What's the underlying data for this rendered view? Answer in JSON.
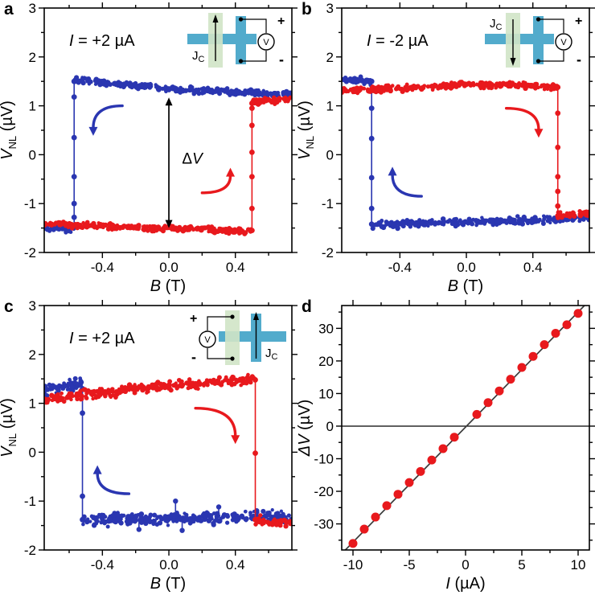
{
  "figure": {
    "colors": {
      "blue": "#2a36b1",
      "red": "#e8191d",
      "black": "#000000",
      "teal": "#52abcc",
      "pale_green": "#d0e4c6",
      "fit_line": "#3a3a3a",
      "background": "#ffffff"
    }
  },
  "chart_data": [
    {
      "id": "a",
      "label": "a",
      "type": "scatter",
      "kind": "hysteresis",
      "current_label": {
        "pre": "I",
        "rest": " = +2 µA"
      },
      "xlabel": {
        "main": "B",
        "rest": " (T)"
      },
      "ylabel": {
        "main": "V",
        "sub": "NL",
        "rest": " (µV)"
      },
      "xlim": [
        -0.75,
        0.74
      ],
      "ylim": [
        -2,
        3
      ],
      "xticks": [
        -0.4,
        0.0,
        0.4
      ],
      "xtick_labels": [
        "-0.4",
        "0.0",
        "0.4"
      ],
      "xminor": [
        -0.6,
        -0.2,
        0.2,
        0.6
      ],
      "yticks": [
        -2,
        -1,
        0,
        1,
        2,
        3
      ],
      "ytick_labels": [
        "-2",
        "-1",
        "0",
        "1",
        "2",
        "3"
      ],
      "yminor": [
        -1.5,
        -0.5,
        0.5,
        1.5,
        2.5
      ],
      "series": [
        {
          "name": "down-sweep",
          "color": "blue",
          "segments": [
            {
              "x": [
                -0.57,
                0.1
              ],
              "y": [
                1.53,
                1.33
              ],
              "noise": 0.09
            },
            {
              "x": [
                0.1,
                0.74
              ],
              "y": [
                1.33,
                1.22
              ],
              "noise": 0.09
            },
            {
              "x": [
                -0.75,
                -0.57
              ],
              "y": [
                -1.5,
                -1.52
              ],
              "noise": 0.1
            }
          ],
          "jump": {
            "x": -0.57,
            "top": 1.5,
            "bottom": -1.45,
            "dots": [
              1.18,
              0.35,
              -0.45,
              -1.0,
              -1.28
            ]
          }
        },
        {
          "name": "up-sweep",
          "color": "red",
          "segments": [
            {
              "x": [
                -0.75,
                0.5
              ],
              "y": [
                -1.42,
                -1.57
              ],
              "noise": 0.09
            },
            {
              "x": [
                0.5,
                0.74
              ],
              "y": [
                1.07,
                1.15
              ],
              "noise": 0.1
            }
          ],
          "jump": {
            "x": 0.5,
            "top": 1.05,
            "bottom": -1.55,
            "dots": [
              0.95,
              0.6,
              0.05,
              -0.45,
              -1.1
            ]
          }
        }
      ],
      "annotations": [
        {
          "type": "curve-arrow",
          "color": "blue",
          "x0": -0.28,
          "y0": 1.0,
          "x1": -0.455,
          "y1": 0.42,
          "dir": "down"
        },
        {
          "type": "curve-arrow",
          "color": "red",
          "x0": 0.2,
          "y0": -0.78,
          "x1": 0.37,
          "y1": -0.3,
          "dir": "up"
        },
        {
          "type": "dv-arrow",
          "x": 0.0,
          "y_top": 1.17,
          "y_bottom": -1.5,
          "label": {
            "pre": "Δ",
            "main": "V"
          },
          "label_x": 0.05,
          "label_y": -0.18
        }
      ],
      "inset": {
        "variant": "meter-right",
        "arrow_dir": "up",
        "jc_pos": "bottom-left",
        "labels": {
          "jc_main": "J",
          "jc_sub": "C",
          "plus": "+",
          "minus": "-",
          "voltmeter": "V"
        }
      }
    },
    {
      "id": "b",
      "label": "b",
      "type": "scatter",
      "kind": "hysteresis",
      "current_label": {
        "pre": "I",
        "rest": " = -2 µA"
      },
      "xlabel": {
        "main": "B",
        "rest": " (T)"
      },
      "ylabel": {
        "main": "V",
        "sub": "NL",
        "rest": " (µV)"
      },
      "xlim": [
        -0.75,
        0.74
      ],
      "ylim": [
        -2,
        3
      ],
      "xticks": [
        -0.4,
        0.0,
        0.4
      ],
      "xtick_labels": [
        "-0.4",
        "0.0",
        "0.4"
      ],
      "xminor": [
        -0.6,
        -0.2,
        0.2,
        0.6
      ],
      "yticks": [
        -2,
        -1,
        0,
        1,
        2,
        3
      ],
      "ytick_labels": [
        "-2",
        "-1",
        "0",
        "1",
        "2",
        "3"
      ],
      "yminor": [
        -1.5,
        -0.5,
        0.5,
        1.5,
        2.5
      ],
      "series": [
        {
          "name": "down-sweep",
          "color": "blue",
          "segments": [
            {
              "x": [
                -0.75,
                -0.57
              ],
              "y": [
                1.52,
                1.5
              ],
              "noise": 0.1
            },
            {
              "x": [
                -0.57,
                0.74
              ],
              "y": [
                -1.44,
                -1.3
              ],
              "noise": 0.1
            }
          ],
          "jump": {
            "x": -0.57,
            "top": 1.5,
            "bottom": -1.42,
            "dots": [
              0.95,
              0.33,
              -0.47,
              -1.1
            ]
          }
        },
        {
          "name": "up-sweep",
          "color": "red",
          "segments": [
            {
              "x": [
                -0.75,
                0.1
              ],
              "y": [
                1.3,
                1.44
              ],
              "noise": 0.09
            },
            {
              "x": [
                0.1,
                0.55
              ],
              "y": [
                1.44,
                1.38
              ],
              "noise": 0.09
            },
            {
              "x": [
                0.55,
                0.74
              ],
              "y": [
                -1.27,
                -1.2
              ],
              "noise": 0.1
            }
          ],
          "jump": {
            "x": 0.55,
            "top": 1.38,
            "bottom": -1.25,
            "dots": [
              0.85,
              0.15,
              -0.45,
              -0.75,
              -1.05
            ]
          }
        }
      ],
      "annotations": [
        {
          "type": "curve-arrow",
          "color": "blue",
          "x0": -0.27,
          "y0": -0.85,
          "x1": -0.445,
          "y1": -0.28,
          "dir": "up"
        },
        {
          "type": "curve-arrow",
          "color": "red",
          "x0": 0.24,
          "y0": 0.95,
          "x1": 0.435,
          "y1": 0.38,
          "dir": "down"
        }
      ],
      "inset": {
        "variant": "meter-right",
        "arrow_dir": "down",
        "jc_pos": "top-left",
        "labels": {
          "jc_main": "J",
          "jc_sub": "C",
          "plus": "+",
          "minus": "-",
          "voltmeter": "V"
        }
      }
    },
    {
      "id": "c",
      "label": "c",
      "type": "scatter",
      "kind": "hysteresis",
      "current_label": {
        "pre": "I",
        "rest": " = +2 µA"
      },
      "xlabel": {
        "main": "B",
        "rest": " (T)"
      },
      "ylabel": {
        "main": "V",
        "sub": "NL",
        "rest": " (µV)"
      },
      "xlim": [
        -0.75,
        0.74
      ],
      "ylim": [
        -2,
        3
      ],
      "xticks": [
        -0.4,
        0.0,
        0.4
      ],
      "xtick_labels": [
        "-0.4",
        "0.0",
        "0.4"
      ],
      "xminor": [
        -0.6,
        -0.2,
        0.2,
        0.6
      ],
      "yticks": [
        -2,
        -1,
        0,
        1,
        2,
        3
      ],
      "ytick_labels": [
        "-2",
        "-1",
        "0",
        "1",
        "2",
        "3"
      ],
      "yminor": [
        -1.5,
        -0.5,
        0.5,
        1.5,
        2.5
      ],
      "series": [
        {
          "name": "down-sweep",
          "color": "blue",
          "segments": [
            {
              "x": [
                -0.75,
                -0.52
              ],
              "y": [
                1.25,
                1.4
              ],
              "noise": 0.17
            },
            {
              "x": [
                -0.52,
                0.74
              ],
              "y": [
                -1.38,
                -1.32
              ],
              "noise": 0.17
            }
          ],
          "jump": {
            "x": -0.52,
            "top": 1.3,
            "bottom": -1.38,
            "dots": [
              0.8,
              -0.9
            ]
          },
          "spikes": [
            {
              "x": 0.04,
              "y": -1.0
            },
            {
              "x": 0.08,
              "y": -1.6
            },
            {
              "x": -0.18,
              "y": -1.58
            },
            {
              "x": 0.3,
              "y": -1.12
            }
          ]
        },
        {
          "name": "up-sweep",
          "color": "red",
          "segments": [
            {
              "x": [
                -0.75,
                -0.2
              ],
              "y": [
                1.08,
                1.3
              ],
              "noise": 0.15
            },
            {
              "x": [
                -0.2,
                0.52
              ],
              "y": [
                1.3,
                1.5
              ],
              "noise": 0.13
            },
            {
              "x": [
                0.52,
                0.74
              ],
              "y": [
                -1.4,
                -1.45
              ],
              "noise": 0.14
            }
          ],
          "jump": {
            "x": 0.52,
            "top": 1.48,
            "bottom": -1.38,
            "dots": [
              -0.02
            ]
          }
        }
      ],
      "annotations": [
        {
          "type": "curve-arrow",
          "color": "blue",
          "x0": -0.24,
          "y0": -0.85,
          "x1": -0.43,
          "y1": -0.3,
          "dir": "up"
        },
        {
          "type": "curve-arrow",
          "color": "red",
          "x0": 0.16,
          "y0": 0.9,
          "x1": 0.4,
          "y1": 0.2,
          "dir": "down"
        }
      ],
      "inset": {
        "variant": "meter-left",
        "arrow_dir": "up",
        "jc_pos": "bottom-right",
        "labels": {
          "jc_main": "J",
          "jc_sub": "C",
          "plus": "+",
          "minus": "-",
          "voltmeter": "V"
        }
      }
    },
    {
      "id": "d",
      "label": "d",
      "type": "scatter",
      "kind": "linear",
      "xlabel": {
        "main": "I",
        "rest": " (µA)"
      },
      "ylabel": {
        "main": "ΔV",
        "rest": " (µV)"
      },
      "xlim": [
        -11,
        11
      ],
      "ylim": [
        -38,
        37
      ],
      "xticks": [
        -10,
        -5,
        0,
        5,
        10
      ],
      "xtick_labels": [
        "-10",
        "-5",
        "0",
        "5",
        "10"
      ],
      "xminor": [
        -7.5,
        -2.5,
        2.5,
        7.5
      ],
      "yticks": [
        -30,
        -20,
        -10,
        0,
        10,
        20,
        30
      ],
      "ytick_labels": [
        "-30",
        "-20",
        "-10",
        "0",
        "10",
        "20",
        "30"
      ],
      "yminor": [
        -35,
        -25,
        -15,
        -5,
        5,
        15,
        25,
        35
      ],
      "zero_line": true,
      "fit_line": {
        "slope": 3.53,
        "intercept": -0.3
      },
      "points": {
        "x": [
          -10,
          -9,
          -8,
          -7,
          -6,
          -5,
          -4,
          -3,
          -2,
          -1,
          1,
          2,
          3,
          4,
          5,
          6,
          7,
          8,
          9,
          10
        ],
        "y": [
          -36.0,
          -31.6,
          -27.9,
          -24.4,
          -20.9,
          -17.3,
          -13.9,
          -10.4,
          -6.9,
          -3.4,
          3.6,
          7.2,
          10.8,
          14.4,
          18.0,
          21.4,
          25.0,
          28.5,
          31.1,
          34.6
        ]
      },
      "point_color": "red"
    }
  ]
}
